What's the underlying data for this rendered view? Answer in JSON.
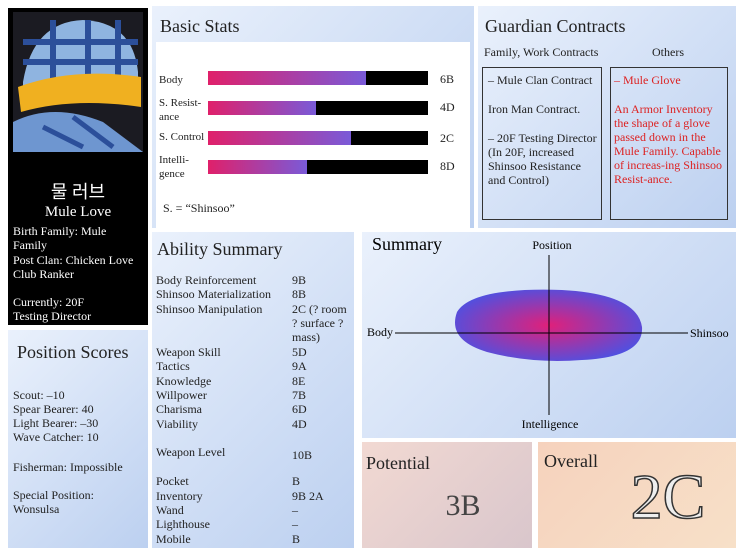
{
  "profile": {
    "name_korean": "물 러브",
    "name": "Mule Love",
    "birth_family": "Birth Family: Mule Family",
    "post_clan": "Post Clan: Chicken Love Club Ranker",
    "currently": "Currently: 20F Testing Director"
  },
  "position_scores": {
    "title": "Position Scores",
    "lines": [
      "Scout: –10",
      "Spear Bearer: 40",
      "Light Bearer: –30",
      "Wave Catcher: 10",
      "Fisherman: Impossible",
      "Special Position: Wonsulsa"
    ]
  },
  "basic_stats": {
    "title": "Basic Stats",
    "rows": [
      [
        "Body",
        "6B"
      ],
      [
        "S. Resist-ance",
        "4D"
      ],
      [
        "S. Control",
        "2C"
      ],
      [
        "Intelli-gence",
        "8D"
      ]
    ],
    "note": "S. = “Shinsoo”"
  },
  "guardian_contracts": {
    "title": "Guardian Contracts",
    "left_header": "Family, Work Contracts",
    "right_header": "Others",
    "left_items": [
      "– Mule Clan Contract",
      "Iron Man Contract.",
      "– 20F Testing Director (In 20F, increased Shinsoo Resistance and Control)"
    ],
    "right_items": [
      "– Mule Glove",
      "An Armor Inventory the shape of a glove passed down in the Mule Family. Capable of increas-ing Shinsoo Resist-ance."
    ]
  },
  "ability_summary": {
    "title": "Ability Summary",
    "rows": [
      [
        "Body Reinforcement",
        "9B"
      ],
      [
        "Shinsoo Materialization",
        "8B"
      ],
      [
        "Shinsoo Manipulation",
        "2C (? room ? surface ? mass)"
      ],
      [
        "Weapon Skill",
        "5D"
      ],
      [
        "Tactics",
        "9A"
      ],
      [
        "Knowledge",
        "8E"
      ],
      [
        "Willpower",
        "7B"
      ],
      [
        "Charisma",
        "6D"
      ],
      [
        "Viability",
        "4D"
      ],
      [
        "Weapon Level",
        "10B"
      ],
      [
        "Pocket",
        "B"
      ],
      [
        "Inventory",
        "9B 2A"
      ],
      [
        "Wand",
        "–"
      ],
      [
        "Lighthouse",
        "–"
      ],
      [
        "Mobile",
        "B"
      ]
    ]
  },
  "summary": {
    "title": "Summary",
    "top": "Position",
    "bottom": "Intelligence",
    "left": "Body",
    "right": "Shinsoo"
  },
  "potential": {
    "title": "Potential",
    "value": "3B"
  },
  "overall": {
    "title": "Overall",
    "value": "2C"
  }
}
